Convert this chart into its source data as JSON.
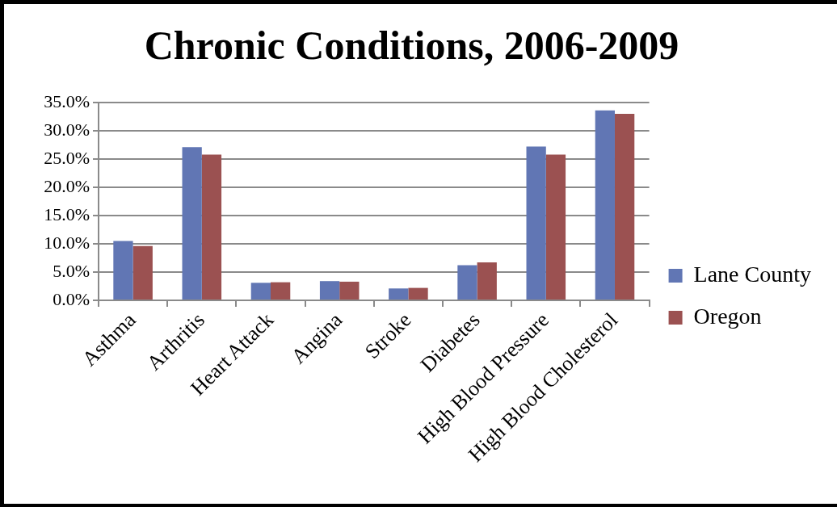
{
  "chart_data": {
    "type": "bar",
    "title": "Chronic Conditions, 2006-2009",
    "categories": [
      "Asthma",
      "Arthritis",
      "Heart Attack",
      "Angina",
      "Stroke",
      "Diabetes",
      "High Blood Pressure",
      "High Blood Cholesterol"
    ],
    "series": [
      {
        "name": "Lane County",
        "color": "#6176b4",
        "values": [
          10.5,
          27.1,
          3.1,
          3.4,
          2.1,
          6.2,
          27.2,
          33.6
        ]
      },
      {
        "name": "Oregon",
        "color": "#9b5151",
        "values": [
          9.6,
          25.8,
          3.2,
          3.3,
          2.2,
          6.7,
          25.8,
          33.0
        ]
      }
    ],
    "ylim": [
      0,
      35
    ],
    "yticks": [
      {
        "value": 0,
        "label": "0.0%"
      },
      {
        "value": 5,
        "label": "5.0%"
      },
      {
        "value": 10,
        "label": "10.0%"
      },
      {
        "value": 15,
        "label": "15.0%"
      },
      {
        "value": 20,
        "label": "20.0%"
      },
      {
        "value": 25,
        "label": "25.0%"
      },
      {
        "value": 30,
        "label": "30.0%"
      },
      {
        "value": 35,
        "label": "35.0%"
      }
    ],
    "grid": "y",
    "legend": "right"
  }
}
